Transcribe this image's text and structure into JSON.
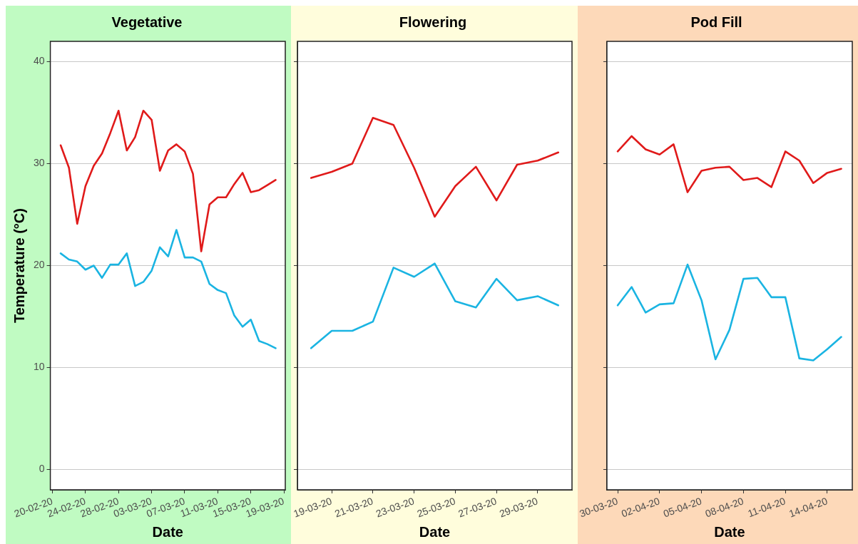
{
  "chart_data": [
    {
      "type": "line",
      "title": "Vegetative",
      "xlabel": "Date",
      "ylabel": "Temperature (°C)",
      "grid": "y",
      "marker": "none",
      "line_style": "solid",
      "x": [
        "--02-21",
        "--02-22",
        "--02-23",
        "--02-24",
        "--02-25",
        "--02-26",
        "--02-27",
        "--02-28",
        "--02-29",
        "--03-01",
        "--03-02",
        "--03-03",
        "--03-04",
        "--03-05",
        "--03-06",
        "--03-07",
        "--03-08",
        "--03-09",
        "--03-10",
        "--03-11",
        "--03-12",
        "--03-13",
        "--03-14",
        "--03-15",
        "--03-16",
        "--03-17",
        "--03-18"
      ],
      "series": [
        {
          "color": "#e01a1a",
          "values": [
            31.8,
            29.6,
            24.1,
            27.8,
            29.8,
            31.0,
            33.0,
            35.2,
            31.3,
            32.6,
            35.2,
            34.3,
            29.3,
            31.3,
            31.9,
            31.2,
            29.0,
            21.4,
            26.0,
            26.7,
            26.7,
            28.0,
            29.1,
            27.2,
            27.4,
            27.9,
            28.4
          ]
        },
        {
          "color": "#1ab4e2",
          "values": [
            21.2,
            20.6,
            20.4,
            19.6,
            20.0,
            18.8,
            20.1,
            20.1,
            21.2,
            18.0,
            18.4,
            19.5,
            21.8,
            20.9,
            23.5,
            20.8,
            20.8,
            20.4,
            18.2,
            17.6,
            17.3,
            15.1,
            14.0,
            14.7,
            12.6,
            12.3,
            11.9
          ]
        }
      ],
      "xlim": [
        "--02-19T18:00",
        "--03-19T04:00"
      ],
      "xticks": [
        {
          "value": "--02-20",
          "label": "20-02-20"
        },
        {
          "value": "--02-24",
          "label": "24-02-20"
        },
        {
          "value": "--02-28",
          "label": "28-02-20"
        },
        {
          "value": "--03-03",
          "label": "03-03-20"
        },
        {
          "value": "--03-07",
          "label": "07-03-20"
        },
        {
          "value": "--03-11",
          "label": "11-03-20"
        },
        {
          "value": "--03-15",
          "label": "15-03-20"
        },
        {
          "value": "--03-19",
          "label": "19-03-20"
        }
      ],
      "ylim": [
        -2,
        42
      ],
      "yticks": [
        0,
        10,
        20,
        30,
        40
      ]
    },
    {
      "type": "line",
      "title": "Flowering",
      "xlabel": "Date",
      "grid": "y",
      "marker": "none",
      "line_style": "solid",
      "tick_labels": "x",
      "x": [
        "--03-18",
        "--03-19",
        "--03-20",
        "--03-21",
        "--03-22",
        "--03-23",
        "--03-24",
        "--03-25",
        "--03-26",
        "--03-27",
        "--03-28",
        "--03-29",
        "--03-30"
      ],
      "series": [
        {
          "color": "#e01a1a",
          "values": [
            28.6,
            29.2,
            30.0,
            34.5,
            33.8,
            29.6,
            24.8,
            27.8,
            29.7,
            26.4,
            29.9,
            30.3,
            31.1
          ]
        },
        {
          "color": "#1ab4e2",
          "values": [
            11.9,
            13.6,
            13.6,
            14.5,
            19.8,
            18.9,
            20.2,
            16.5,
            15.9,
            18.7,
            16.6,
            17.0,
            16.1
          ]
        }
      ],
      "xlim": [
        "--03-17T08:00",
        "--03-30T16:00"
      ],
      "xticks": [
        {
          "value": "--03-19",
          "label": "19-03-20"
        },
        {
          "value": "--03-21",
          "label": "21-03-20"
        },
        {
          "value": "--03-23",
          "label": "23-03-20"
        },
        {
          "value": "--03-25",
          "label": "25-03-20"
        },
        {
          "value": "--03-27",
          "label": "27-03-20"
        },
        {
          "value": "--03-29",
          "label": "29-03-20"
        }
      ],
      "ylim": [
        -2,
        42
      ],
      "yticks": [
        0,
        10,
        20,
        30,
        40
      ]
    },
    {
      "type": "line",
      "title": "Pod Fill",
      "xlabel": "Date",
      "grid": "y",
      "marker": "none",
      "line_style": "solid",
      "tick_labels": "x",
      "x": [
        "--03-30",
        "--03-31",
        "--04-01",
        "--04-02",
        "--04-03",
        "--04-04",
        "--04-05",
        "--04-06",
        "--04-07",
        "--04-08",
        "--04-09",
        "--04-10",
        "--04-11",
        "--04-12",
        "--04-13",
        "--04-14",
        "--04-15"
      ],
      "series": [
        {
          "color": "#e01a1a",
          "values": [
            31.2,
            32.7,
            31.4,
            30.9,
            31.9,
            27.2,
            29.3,
            29.6,
            29.7,
            28.4,
            28.6,
            27.7,
            31.2,
            30.3,
            28.1,
            29.1,
            29.5
          ]
        },
        {
          "color": "#1ab4e2",
          "values": [
            16.1,
            17.9,
            15.4,
            16.2,
            16.3,
            20.1,
            16.6,
            10.8,
            13.7,
            18.7,
            18.8,
            16.9,
            16.9,
            10.9,
            10.7,
            11.8,
            13.0
          ]
        }
      ],
      "xlim": [
        "--03-29T05:30",
        "--04-15T19:00"
      ],
      "xticks": [
        {
          "value": "--03-30",
          "label": "30-03-20"
        },
        {
          "value": "--04-02",
          "label": "02-04-20"
        },
        {
          "value": "--04-05",
          "label": "05-04-20"
        },
        {
          "value": "--04-08",
          "label": "08-04-20"
        },
        {
          "value": "--04-11",
          "label": "11-04-20"
        },
        {
          "value": "--04-14",
          "label": "14-04-20"
        }
      ],
      "ylim": [
        -2,
        42
      ],
      "yticks": [
        0,
        10,
        20,
        30,
        40
      ]
    }
  ]
}
